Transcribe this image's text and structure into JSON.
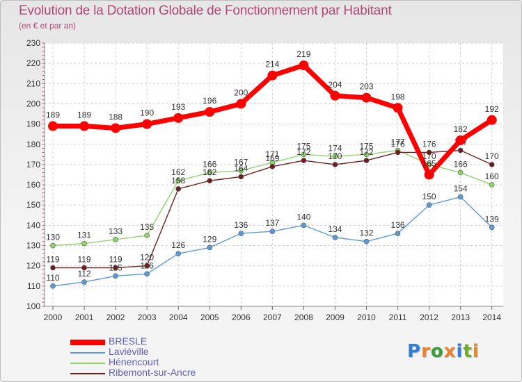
{
  "header": {
    "title": "Evolution de la Dotation Globale de Fonctionnement par Habitant",
    "subtitle": "(en € et par an)"
  },
  "logo": {
    "text": "Proxiti",
    "colors": [
      "#2f7fd6",
      "#e8842a",
      "#3a9c3a",
      "#e8842a",
      "#2f7fd6",
      "#6cae2b",
      "#e8842a"
    ]
  },
  "chart_data": {
    "type": "line",
    "title": "Evolution de la Dotation Globale de Fonctionnement par Habitant",
    "subtitle": "(en € et par an)",
    "x": [
      "2000",
      "2001",
      "2002",
      "2003",
      "2004",
      "2005",
      "2006",
      "2007",
      "2008",
      "2009",
      "2010",
      "2011",
      "2012",
      "2013",
      "2014"
    ],
    "ylim": [
      100,
      230
    ],
    "yticks": [
      100,
      110,
      120,
      130,
      140,
      150,
      160,
      170,
      180,
      190,
      200,
      210,
      220,
      230
    ],
    "grid": true,
    "legend": "bottom-left",
    "series": [
      {
        "name": "Laviéville",
        "color": "#5b9bd5",
        "values": [
          110,
          112,
          115,
          116,
          126,
          129,
          136,
          137,
          140,
          134,
          132,
          136,
          150,
          154,
          139
        ]
      },
      {
        "name": "Hénencourt",
        "color": "#8fd46a",
        "values": [
          130,
          131,
          133,
          135,
          162,
          166,
          167,
          171,
          175,
          174,
          175,
          177,
          170,
          166,
          160
        ]
      },
      {
        "name": "Ribemont-sur-Ancre",
        "color": "#6b1f1f",
        "values": [
          119,
          119,
          119,
          120,
          158,
          162,
          164,
          169,
          172,
          170,
          172,
          176,
          176,
          177,
          170
        ]
      },
      {
        "name": "BRESLE",
        "color": "#ff0000",
        "values": [
          189,
          189,
          188,
          190,
          193,
          196,
          200,
          214,
          219,
          204,
          203,
          198,
          165,
          182,
          192
        ]
      }
    ],
    "legend_order": [
      "BRESLE",
      "Laviéville",
      "Hénencourt",
      "Ribemont-sur-Ancre"
    ]
  }
}
